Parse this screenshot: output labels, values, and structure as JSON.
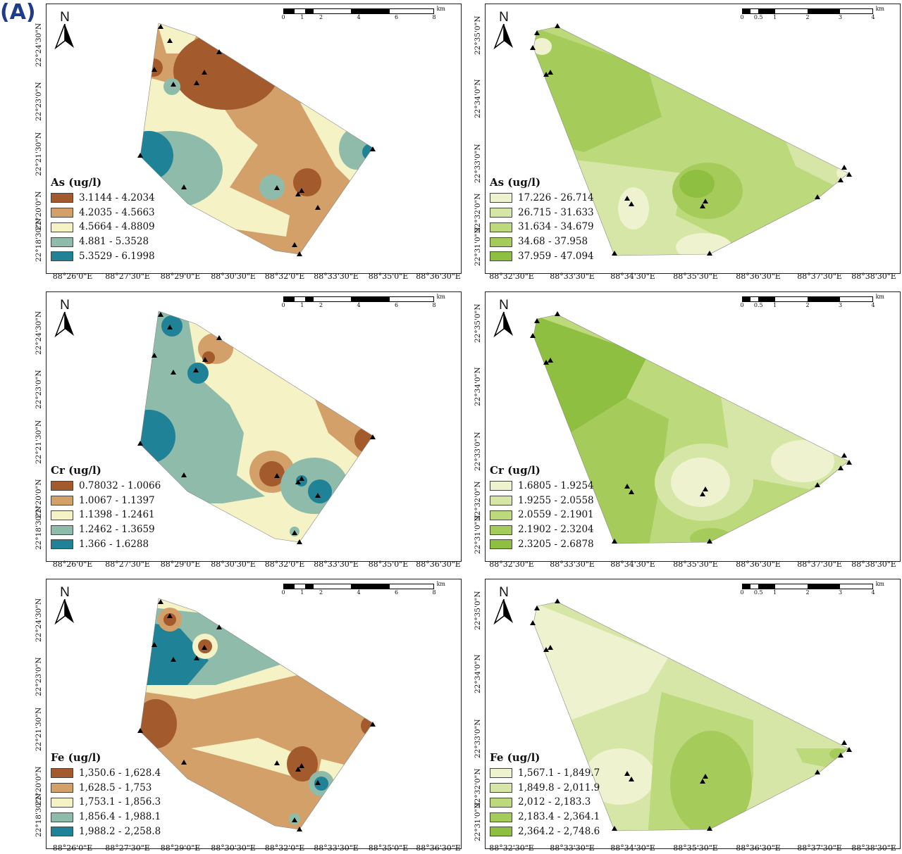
{
  "figure_label": "(A)",
  "north_label": "N",
  "left_scale": {
    "unit": "km",
    "ticks": [
      "0",
      "1",
      "2",
      "4",
      "6",
      "8"
    ]
  },
  "right_scale": {
    "unit": "km",
    "ticks": [
      "0",
      "0.5",
      "1",
      "2",
      "3",
      "4"
    ]
  },
  "left_axes": {
    "y": [
      "22°24'30\"N",
      "22°23'0\"N",
      "22°21'30\"N",
      "22°20'0\"N",
      "22°18'30\"N"
    ],
    "x": [
      "88°26'0\"E",
      "88°27'30\"E",
      "88°29'0\"E",
      "88°30'30\"E",
      "88°32'0\"E",
      "88°33'30\"E",
      "88°35'0\"E",
      "88°36'30\"E"
    ]
  },
  "right_axes": {
    "y": [
      "22°35'0\"N",
      "22°34'0\"N",
      "22°33'0\"N",
      "22°32'0\"N",
      "22°31'0\"N"
    ],
    "x": [
      "88°32'30\"E",
      "88°33'30\"E",
      "88°34'30\"E",
      "88°35'30\"E",
      "88°36'30\"E",
      "88°37'30\"E",
      "88°38'30\"E"
    ]
  },
  "panels": [
    {
      "id": "as-left",
      "title": "As (ug/l)",
      "classes": [
        {
          "range": "3.1144 - 4.2034",
          "color": "#a35a2c"
        },
        {
          "range": "4.2035 - 4.5663",
          "color": "#d3a06a"
        },
        {
          "range": "4.5664 - 4.8809",
          "color": "#f5f2c6"
        },
        {
          "range": "4.881 - 5.3528",
          "color": "#8fbcaa"
        },
        {
          "range": "5.3529 - 6.1998",
          "color": "#1f8296"
        }
      ]
    },
    {
      "id": "as-right",
      "title": "As (ug/l)",
      "classes": [
        {
          "range": "17.226 - 26.714",
          "color": "#eef2cf"
        },
        {
          "range": "26.715 - 31.633",
          "color": "#d6e6a6"
        },
        {
          "range": "31.634 - 34.679",
          "color": "#bcd97c"
        },
        {
          "range": "34.68 - 37.958",
          "color": "#a5cc5b"
        },
        {
          "range": "37.959 - 47.094",
          "color": "#8fbf40"
        }
      ]
    },
    {
      "id": "cr-left",
      "title": "Cr (ug/l)",
      "classes": [
        {
          "range": "0.78032 - 1.0066",
          "color": "#a35a2c"
        },
        {
          "range": "1.0067 - 1.1397",
          "color": "#d3a06a"
        },
        {
          "range": "1.1398 - 1.2461",
          "color": "#f5f2c6"
        },
        {
          "range": "1.2462 - 1.3659",
          "color": "#8fbcaa"
        },
        {
          "range": "1.366 - 1.6288",
          "color": "#1f8296"
        }
      ]
    },
    {
      "id": "cr-right",
      "title": "Cr (ug/l)",
      "classes": [
        {
          "range": "1.6805 - 1.9254",
          "color": "#eef2cf"
        },
        {
          "range": "1.9255 - 2.0558",
          "color": "#d6e6a6"
        },
        {
          "range": "2.0559 - 2.1901",
          "color": "#bcd97c"
        },
        {
          "range": "2.1902 - 2.3204",
          "color": "#a5cc5b"
        },
        {
          "range": "2.3205 - 2.6878",
          "color": "#8fbf40"
        }
      ]
    },
    {
      "id": "fe-left",
      "title": "Fe (ug/l)",
      "classes": [
        {
          "range": "1,350.6 - 1,628.4",
          "color": "#a35a2c"
        },
        {
          "range": "1,628.5 - 1,753",
          "color": "#d3a06a"
        },
        {
          "range": "1,753.1 - 1,856.3",
          "color": "#f5f2c6"
        },
        {
          "range": "1,856.4 - 1,988.1",
          "color": "#8fbcaa"
        },
        {
          "range": "1,988.2 - 2,258.8",
          "color": "#1f8296"
        }
      ]
    },
    {
      "id": "fe-right",
      "title": "Fe (ug/l)",
      "classes": [
        {
          "range": "1,567.1 - 1,849.7",
          "color": "#eef2cf"
        },
        {
          "range": "1,849.8 - 2,011.9",
          "color": "#d6e6a6"
        },
        {
          "range": "2,012 - 2,183.3",
          "color": "#bcd97c"
        },
        {
          "range": "2,183.4 - 2,364.1",
          "color": "#a5cc5b"
        },
        {
          "range": "2,364.2 - 2,748.6",
          "color": "#8fbf40"
        }
      ]
    }
  ]
}
